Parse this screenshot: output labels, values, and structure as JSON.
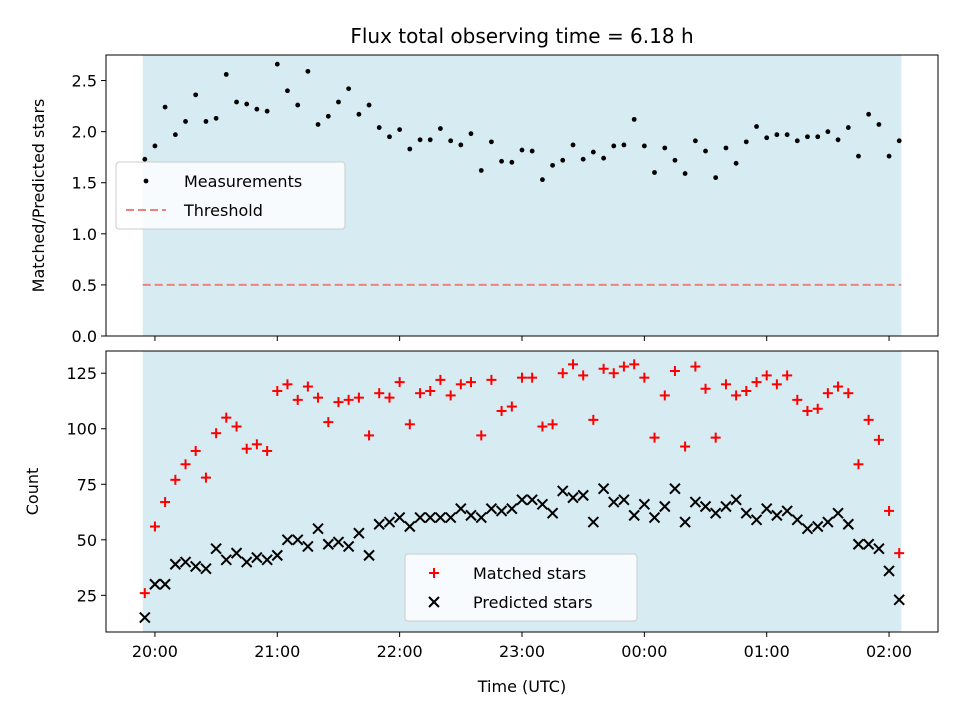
{
  "chart_data": [
    {
      "type": "scatter",
      "title": "Flux total observing time = 6.18 h",
      "xlabel": "",
      "ylabel": "Matched/Predicted stars",
      "ylim": [
        0,
        2.75
      ],
      "yticks": [
        "0.0",
        "0.5",
        "1.0",
        "1.5",
        "2.0",
        "2.5"
      ],
      "ytick_values": [
        0,
        0.5,
        1.0,
        1.5,
        2.0,
        2.5
      ],
      "x_unit": "hours since 20:00 UTC",
      "observing_window": [
        -0.1,
        6.1
      ],
      "observing_color": "#add8e6",
      "legend_position": "center-left",
      "legend": [
        "Measurements",
        "Threshold"
      ],
      "threshold": {
        "name": "Threshold",
        "value": 0.5,
        "color": "#f08080"
      },
      "series": [
        {
          "name": "Measurements",
          "color": "#000000",
          "marker": "dot",
          "x": [
            -0.083,
            0.0,
            0.083,
            0.167,
            0.25,
            0.333,
            0.417,
            0.5,
            0.583,
            0.667,
            0.75,
            0.833,
            0.917,
            1.0,
            1.083,
            1.167,
            1.25,
            1.333,
            1.417,
            1.5,
            1.583,
            1.667,
            1.75,
            1.833,
            1.917,
            2.0,
            2.083,
            2.167,
            2.25,
            2.333,
            2.417,
            2.5,
            2.583,
            2.667,
            2.75,
            2.833,
            2.917,
            3.0,
            3.083,
            3.167,
            3.25,
            3.333,
            3.417,
            3.5,
            3.583,
            3.667,
            3.75,
            3.833,
            3.917,
            4.0,
            4.083,
            4.167,
            4.25,
            4.333,
            4.417,
            4.5,
            4.583,
            4.667,
            4.75,
            4.833,
            4.917,
            5.0,
            5.083,
            5.167,
            5.25,
            5.333,
            5.417,
            5.5,
            5.583,
            5.667,
            5.75,
            5.833,
            5.917,
            6.0,
            6.083
          ],
          "y": [
            1.73,
            1.86,
            2.24,
            1.97,
            2.1,
            2.36,
            2.1,
            2.13,
            2.56,
            2.29,
            2.27,
            2.22,
            2.2,
            2.66,
            2.4,
            2.26,
            2.59,
            2.07,
            2.15,
            2.29,
            2.42,
            2.17,
            2.26,
            2.04,
            1.95,
            2.02,
            1.83,
            1.92,
            1.92,
            2.03,
            1.91,
            1.87,
            1.98,
            1.62,
            1.9,
            1.71,
            1.7,
            1.82,
            1.81,
            1.53,
            1.67,
            1.72,
            1.87,
            1.73,
            1.8,
            1.74,
            1.86,
            1.87,
            2.12,
            1.86,
            1.6,
            1.84,
            1.72,
            1.59,
            1.91,
            1.81,
            1.55,
            1.84,
            1.69,
            1.9,
            2.05,
            1.94,
            1.97,
            1.97,
            1.91,
            1.95,
            1.95,
            2.0,
            1.92,
            2.04,
            1.76,
            2.17,
            2.07,
            1.76,
            1.91
          ]
        }
      ]
    },
    {
      "type": "scatter",
      "title": "",
      "xlabel": "Time (UTC)",
      "ylabel": "Count",
      "ylim": [
        8.5,
        135
      ],
      "yticks": [
        "25",
        "50",
        "75",
        "100",
        "125"
      ],
      "ytick_values": [
        25,
        50,
        75,
        100,
        125
      ],
      "x_unit": "hours since 20:00 UTC",
      "xlim": [
        -0.4,
        6.4
      ],
      "xticks": [
        "20:00",
        "21:00",
        "22:00",
        "23:00",
        "00:00",
        "01:00",
        "02:00"
      ],
      "xtick_values": [
        0,
        1,
        2,
        3,
        4,
        5,
        6
      ],
      "observing_window": [
        -0.1,
        6.1
      ],
      "observing_color": "#add8e6",
      "legend_position": "lower-center",
      "legend": [
        "Matched stars",
        "Predicted stars"
      ],
      "series": [
        {
          "name": "Matched stars",
          "color": "#ff0000",
          "marker": "plus",
          "x": [
            -0.083,
            0.0,
            0.083,
            0.167,
            0.25,
            0.333,
            0.417,
            0.5,
            0.583,
            0.667,
            0.75,
            0.833,
            0.917,
            1.0,
            1.083,
            1.167,
            1.25,
            1.333,
            1.417,
            1.5,
            1.583,
            1.667,
            1.75,
            1.833,
            1.917,
            2.0,
            2.083,
            2.167,
            2.25,
            2.333,
            2.417,
            2.5,
            2.583,
            2.667,
            2.75,
            2.833,
            2.917,
            3.0,
            3.083,
            3.167,
            3.25,
            3.333,
            3.417,
            3.5,
            3.583,
            3.667,
            3.75,
            3.833,
            3.917,
            4.0,
            4.083,
            4.167,
            4.25,
            4.333,
            4.417,
            4.5,
            4.583,
            4.667,
            4.75,
            4.833,
            4.917,
            5.0,
            5.083,
            5.167,
            5.25,
            5.333,
            5.417,
            5.5,
            5.583,
            5.667,
            5.75,
            5.833,
            5.917,
            6.0,
            6.083
          ],
          "y": [
            26,
            56,
            67,
            77,
            84,
            90,
            78,
            98,
            105,
            101,
            91,
            93,
            90,
            117,
            120,
            113,
            119,
            114,
            103,
            112,
            113,
            114,
            97,
            116,
            114,
            121,
            102,
            116,
            117,
            122,
            115,
            120,
            121,
            97,
            122,
            108,
            110,
            123,
            123,
            101,
            102,
            125,
            129,
            124,
            104,
            127,
            125,
            128,
            129,
            123,
            96,
            115,
            126,
            92,
            128,
            118,
            96,
            120,
            115,
            117,
            121,
            124,
            120,
            124,
            113,
            108,
            109,
            116,
            119,
            116,
            84,
            104,
            95,
            63,
            44
          ]
        },
        {
          "name": "Predicted stars",
          "color": "#000000",
          "marker": "x",
          "x": [
            -0.083,
            0.0,
            0.083,
            0.167,
            0.25,
            0.333,
            0.417,
            0.5,
            0.583,
            0.667,
            0.75,
            0.833,
            0.917,
            1.0,
            1.083,
            1.167,
            1.25,
            1.333,
            1.417,
            1.5,
            1.583,
            1.667,
            1.75,
            1.833,
            1.917,
            2.0,
            2.083,
            2.167,
            2.25,
            2.333,
            2.417,
            2.5,
            2.583,
            2.667,
            2.75,
            2.833,
            2.917,
            3.0,
            3.083,
            3.167,
            3.25,
            3.333,
            3.417,
            3.5,
            3.583,
            3.667,
            3.75,
            3.833,
            3.917,
            4.0,
            4.083,
            4.167,
            4.25,
            4.333,
            4.417,
            4.5,
            4.583,
            4.667,
            4.75,
            4.833,
            4.917,
            5.0,
            5.083,
            5.167,
            5.25,
            5.333,
            5.417,
            5.5,
            5.583,
            5.667,
            5.75,
            5.833,
            5.917,
            6.0,
            6.083
          ],
          "y": [
            15,
            30,
            30,
            39,
            40,
            38,
            37,
            46,
            41,
            44,
            40,
            42,
            41,
            43,
            50,
            50,
            47,
            55,
            48,
            49,
            47,
            53,
            43,
            57,
            58,
            60,
            56,
            60,
            60,
            60,
            60,
            64,
            61,
            60,
            64,
            63,
            64,
            68,
            68,
            66,
            62,
            72,
            69,
            70,
            58,
            73,
            67,
            68,
            61,
            66,
            60,
            65,
            73,
            58,
            67,
            65,
            62,
            65,
            68,
            62,
            59,
            64,
            61,
            63,
            59,
            55,
            56,
            58,
            62,
            57,
            48,
            48,
            46,
            36,
            23
          ]
        }
      ]
    }
  ]
}
